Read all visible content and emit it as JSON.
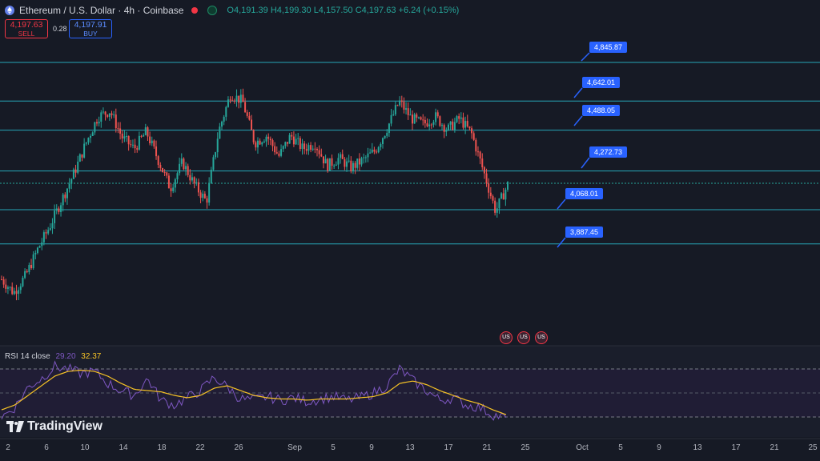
{
  "header": {
    "symbol_title": "Ethereum / U.S. Dollar · 4h · Coinbase",
    "open": "O4,191.39",
    "high": "H4,199.30",
    "low": "L4,157.50",
    "close": "C4,197.63",
    "change": "+6.24 (+0.15%)"
  },
  "trade": {
    "sell_price": "4,197.63",
    "sell_label": "SELL",
    "spread": "0.28",
    "buy_price": "4,197.91",
    "buy_label": "BUY"
  },
  "rsi": {
    "label": "RSI 14 close",
    "value": "29.20",
    "ma_value": "32.37"
  },
  "logo": {
    "text": "TradingView"
  },
  "levels": [
    "4,845.87",
    "4,642.01",
    "4,488.05",
    "4,272.73",
    "4,068.01",
    "3,887.45"
  ],
  "x_ticks": [
    "2",
    "6",
    "10",
    "14",
    "18",
    "22",
    "26",
    "Sep",
    "5",
    "9",
    "13",
    "17",
    "21",
    "25",
    "Oct",
    "5",
    "9",
    "13",
    "17",
    "21",
    "25"
  ],
  "colors": {
    "background": "#161a25",
    "up": "#26a69a",
    "down": "#ef5350",
    "level_line": "#26a6b7",
    "tag": "#2962ff",
    "rsi": "#7e57c2",
    "rsi_ma": "#f7c325"
  },
  "chart_data": {
    "type": "candlestick",
    "series_count": 2,
    "levels": [
      4845.87,
      4642.01,
      4488.05,
      4272.73,
      4068.01,
      3887.45
    ],
    "last_close": 4197.63,
    "rsi_last": 29.2,
    "rsi_ma_last": 32.37,
    "price_path": [
      3700,
      3630,
      3720,
      3860,
      3980,
      4120,
      4260,
      4420,
      4560,
      4590,
      4450,
      4390,
      4480,
      4330,
      4180,
      4320,
      4200,
      4110,
      4480,
      4680,
      4640,
      4420,
      4460,
      4350,
      4460,
      4390,
      4420,
      4300,
      4340,
      4290,
      4330,
      4380,
      4500,
      4640,
      4550,
      4520,
      4560,
      4490,
      4550,
      4470,
      4270,
      4060,
      4200
    ],
    "rsi_path": [
      30,
      38,
      55,
      62,
      72,
      70,
      66,
      68,
      58,
      52,
      48,
      62,
      44,
      40,
      46,
      52,
      63,
      55,
      45,
      44,
      47,
      44,
      46,
      43,
      45,
      47,
      44,
      46,
      50,
      56,
      70,
      60,
      52,
      44,
      46,
      40,
      38,
      32,
      29
    ],
    "rsi_ma_path": [
      36,
      40,
      48,
      56,
      64,
      68,
      69,
      68,
      64,
      58,
      53,
      52,
      51,
      48,
      46,
      48,
      54,
      56,
      52,
      48,
      46,
      45,
      45,
      44,
      45,
      45,
      45,
      46,
      47,
      50,
      58,
      60,
      57,
      52,
      48,
      44,
      41,
      36,
      32
    ]
  }
}
